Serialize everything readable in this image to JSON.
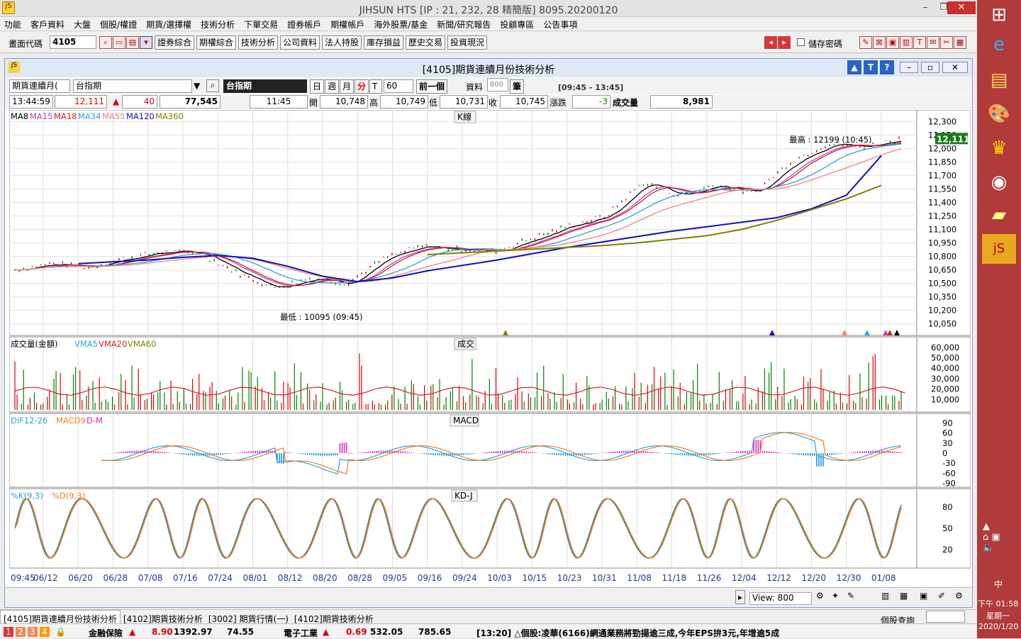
{
  "app": {
    "title": "JIHSUN HTS     [IP : 21, 232, 28 精簡版] 8095.20200120",
    "minimize": "–",
    "restore": "❐",
    "close": "✕"
  },
  "menu": [
    "功能",
    "客戶資料",
    "大盤",
    "個股/權證",
    "期貨/選擇權",
    "技術分析",
    "下單交易",
    "證券帳戶",
    "期權帳戶",
    "海外股票/基金",
    "新聞/研究報告",
    "投顧專區",
    "公告事項"
  ],
  "toolbar": {
    "code_label": "畫面代碼",
    "code_value": "4105",
    "buttons": [
      "證券綜合",
      "期權綜合",
      "技術分析",
      "公司資料",
      "法人持股",
      "庫存損益",
      "歷史交易",
      "投資現況"
    ],
    "save_pwd": "儲存密碼"
  },
  "subwindow": {
    "title": "[4105]期貨連續月份技術分析",
    "selector": "期貨連續月(",
    "symbol": "台指期",
    "symbol_name": "台指期",
    "period_buttons": [
      "日",
      "週",
      "月",
      "分",
      "T"
    ],
    "interval": "60",
    "prev_button": "前一個",
    "data_label": "資料",
    "data_count": "800",
    "count_unit": "筆",
    "session": "[09:45 - 13:45]",
    "quote": {
      "time": "13:44:59",
      "price": "12,111",
      "change": "40",
      "volume": "77,545",
      "bar_time": "11:45",
      "open_label": "開",
      "open": "10,748",
      "high_label": "高",
      "high": "10,749",
      "low_label": "低",
      "low": "10,731",
      "close_label": "收",
      "close": "10,745",
      "chg_label": "漲跌",
      "chg": "-3",
      "vol_label": "成交量",
      "vol": "8,981"
    }
  },
  "chart_data": [
    {
      "type": "line",
      "title": "K線",
      "legend": [
        "MA8",
        "MA15",
        "MA18",
        "MA34",
        "MA55",
        "MA120",
        "MA360"
      ],
      "ylim": [
        10000,
        12350
      ],
      "yticks": [
        "12,300",
        "12,150",
        "12,000",
        "11,850",
        "11,700",
        "11,550",
        "11,400",
        "11,250",
        "11,100",
        "10,950",
        "10,800",
        "10,650",
        "10,500",
        "10,350",
        "10,200",
        "10,050"
      ],
      "last_price": "12,111",
      "annotations": [
        "最高 : 12199 (10:45)",
        "最低 : 10095 (09:45)"
      ],
      "x": [
        "06/12",
        "06/20",
        "06/28",
        "07/08",
        "07/16",
        "07/24",
        "08/01",
        "08/12",
        "08/20",
        "08/28",
        "09/05",
        "09/16",
        "09/24",
        "10/03",
        "10/15",
        "10/23",
        "10/31",
        "11/08",
        "11/18",
        "11/26",
        "12/04",
        "12/12",
        "12/20",
        "12/30",
        "01/08"
      ],
      "series": [
        {
          "name": "MA120",
          "values": [
            10680,
            10720,
            10740,
            10760,
            10790,
            10810,
            10780,
            10690,
            10580,
            10520,
            10560,
            10640,
            10700,
            10760,
            10830,
            10900,
            10960,
            11020,
            11080,
            11130,
            11180,
            11230,
            11330,
            11480,
            11920
          ]
        },
        {
          "name": "MA360",
          "values": [
            10600,
            10620,
            10640,
            10660,
            10680,
            10700,
            10720,
            10740,
            10760,
            10780,
            10800,
            10820,
            10840,
            10860,
            10880,
            10900,
            10920,
            10950,
            10990,
            11030,
            11100,
            11200,
            11320,
            11440,
            11590
          ]
        },
        {
          "name": "Close",
          "values": [
            10650,
            10720,
            10680,
            10780,
            10850,
            10840,
            10620,
            10450,
            10560,
            10500,
            10780,
            10910,
            10880,
            10860,
            11000,
            11140,
            11250,
            11620,
            11480,
            11600,
            11500,
            11850,
            12050,
            12020,
            12111
          ]
        }
      ]
    },
    {
      "type": "bar",
      "title": "成交",
      "legend": [
        "成交量(金額)",
        "VMA5",
        "VMA20",
        "VMA60"
      ],
      "yticks": [
        "60,000",
        "50,000",
        "40,000",
        "30,000",
        "20,000",
        "10,000"
      ]
    },
    {
      "type": "line",
      "title": "MACD",
      "legend": [
        "DIF12-26",
        "MACD9",
        "D-M"
      ],
      "yticks": [
        "90",
        "60",
        "30",
        "0",
        "-30",
        "-60",
        "-90"
      ]
    },
    {
      "type": "line",
      "title": "KD-J",
      "legend": [
        "%K(9,3)",
        "%D(9,3)"
      ],
      "yticks": [
        "80",
        "50",
        "20"
      ]
    }
  ],
  "x_start": "09:45",
  "view": "View: 800",
  "tabs": [
    "[4105]期貨連續月份技術分析",
    "[4102]期貨技術分析",
    "[3002] 期貨行情(一)",
    "[4102]期貨技術分析"
  ],
  "stock_query": "個股查詢",
  "status": {
    "nums": [
      "1",
      "2",
      "3",
      "4"
    ],
    "s1_name": "金融保險",
    "s1_chg": "8.90",
    "s1_idx": "1392.97",
    "s1_vol": "74.55",
    "s2_name": "電子工業",
    "s2_chg": "0.69",
    "s2_idx": "532.05",
    "s2_vol": "785.65",
    "news": "[13:20] △個股:凌華(6166)網通業務將勁揚逾三成,今年EPS拚3元,年增逾5成"
  },
  "clock": {
    "time": "下午 01:58",
    "day": "星期一",
    "date": "2020/1/20",
    "ime": "中"
  },
  "colors": {
    "up": "#e00000",
    "down": "#008000",
    "ma120": "#1010c0",
    "ma360": "#808000",
    "ma55": "#f08080",
    "ma34": "#30b0e0",
    "macd_pos": "#e020c0",
    "macd_neg": "#1090e0"
  }
}
